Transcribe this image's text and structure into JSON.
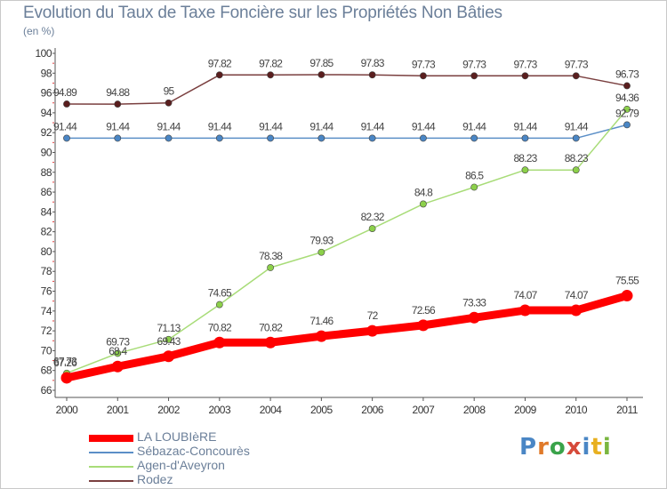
{
  "title": "Evolution du Taux de Taxe Foncière sur les Propriétés Non Bâties",
  "subtitle": "(en %)",
  "logo_text": "Proxiti",
  "chart_data": {
    "type": "line",
    "title": "Evolution du Taux de Taxe Foncière sur les Propriétés Non Bâties",
    "ylabel": "(en %)",
    "xlabel": "",
    "x": [
      "2000",
      "2001",
      "2002",
      "2003",
      "2004",
      "2005",
      "2006",
      "2007",
      "2008",
      "2009",
      "2010",
      "2011"
    ],
    "ylim": [
      66,
      100
    ],
    "yticks": [
      66,
      68,
      70,
      72,
      74,
      76,
      78,
      80,
      82,
      84,
      86,
      88,
      90,
      92,
      94,
      96,
      98,
      100
    ],
    "grid": false,
    "legend_position": "bottom-left",
    "series": [
      {
        "name": "LA LOUBIèRE",
        "color": "#ff0000",
        "values": [
          67.26,
          68.4,
          69.43,
          70.82,
          70.82,
          71.46,
          72,
          72.56,
          73.33,
          74.07,
          74.07,
          75.55
        ],
        "labels": [
          "67.26",
          "68.4",
          "69.43",
          "70.82",
          "70.82",
          "71.46",
          "72",
          "72.56",
          "73.33",
          "74.07",
          "74.07",
          "75.55"
        ]
      },
      {
        "name": "Sébazac-Concourès",
        "color": "#5b8fc7",
        "values": [
          91.44,
          91.44,
          91.44,
          91.44,
          91.44,
          91.44,
          91.44,
          91.44,
          91.44,
          91.44,
          91.44,
          92.79
        ],
        "labels": [
          "91.44",
          "91.44",
          "91.44",
          "91.44",
          "91.44",
          "91.44",
          "91.44",
          "91.44",
          "91.44",
          "91.44",
          "91.44",
          "92.79"
        ]
      },
      {
        "name": "Agen-d'Aveyron",
        "color": "#a8dc78",
        "values": [
          67.73,
          69.73,
          71.13,
          74.65,
          78.38,
          79.93,
          82.32,
          84.8,
          86.5,
          88.23,
          88.23,
          94.36
        ],
        "labels": [
          "67.73",
          "69.73",
          "71.13",
          "74.65",
          "78.38",
          "79.93",
          "82.32",
          "84.8",
          "86.5",
          "88.23",
          "88.23",
          "94.36"
        ]
      },
      {
        "name": "Rodez",
        "color": "#7a3f3f",
        "values": [
          94.89,
          94.88,
          95,
          97.82,
          97.82,
          97.85,
          97.83,
          97.73,
          97.73,
          97.73,
          97.73,
          96.73
        ],
        "labels": [
          "94.89",
          "94.88",
          "95",
          "97.82",
          "97.82",
          "97.85",
          "97.83",
          "97.73",
          "97.73",
          "97.73",
          "97.73",
          "96.73"
        ]
      }
    ]
  }
}
